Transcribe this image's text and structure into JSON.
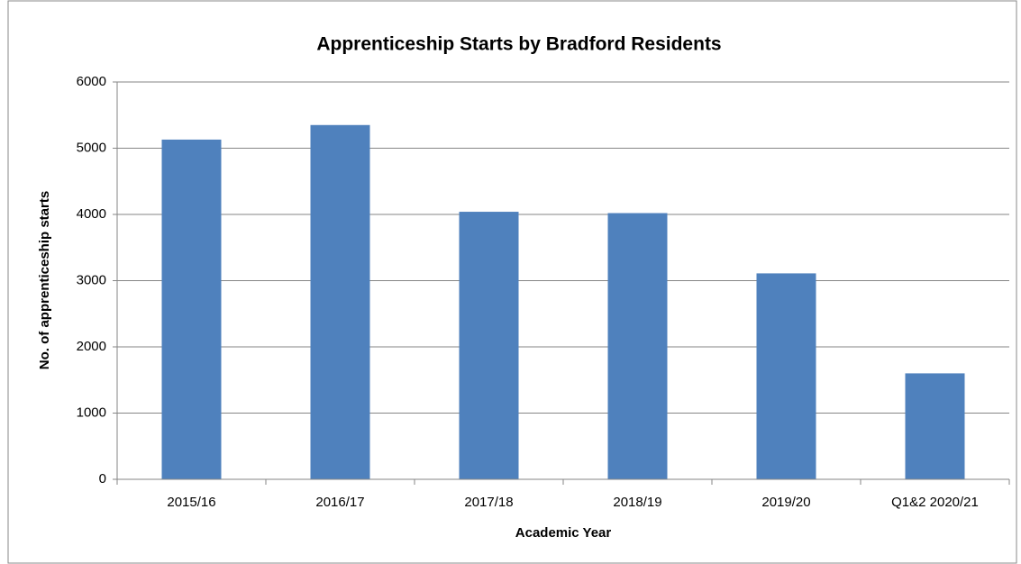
{
  "chart_data": {
    "type": "bar",
    "title": "Apprenticeship Starts by Bradford Residents",
    "x_label": "Academic Year",
    "y_label": "No. of apprenticeship starts",
    "categories": [
      "2015/16",
      "2016/17",
      "2017/18",
      "2018/19",
      "2019/20",
      "Q1&2 2020/21"
    ],
    "values": [
      5130,
      5350,
      4040,
      4020,
      3110,
      1600
    ],
    "color": "#4f81bd",
    "ylim": [
      0,
      6000
    ],
    "yticks": [
      0,
      1000,
      2000,
      3000,
      4000,
      5000,
      6000
    ],
    "grid": true
  }
}
